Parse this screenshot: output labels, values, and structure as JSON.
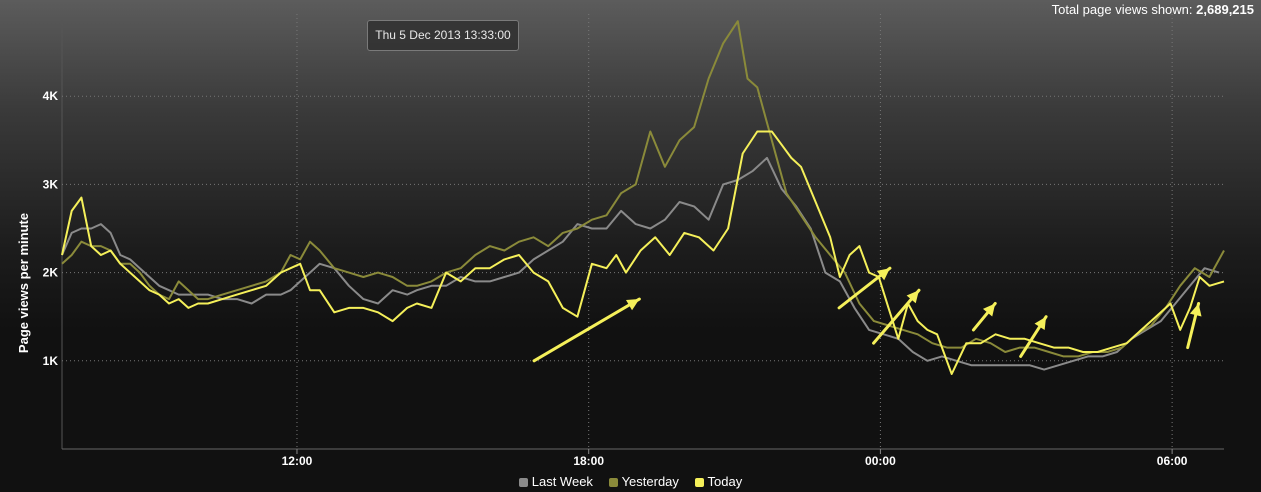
{
  "header": {
    "total_label": "Total page views shown:",
    "total_value": "2,689,215"
  },
  "tooltip": {
    "text": "Thu 5 Dec 2013 13:33:00"
  },
  "chart_data": {
    "type": "line",
    "ylabel": "Page views per minute",
    "ylim": [
      0,
      5000
    ],
    "yticks": [
      1000,
      2000,
      3000,
      4000
    ],
    "ytick_labels": [
      "1K",
      "2K",
      "3K",
      "4K"
    ],
    "x_unit": "hours from chart start (07:10)",
    "xlim": [
      0,
      23.9
    ],
    "xticks": [
      4.833,
      10.833,
      16.833,
      22.833
    ],
    "xtick_labels": [
      "12:00",
      "18:00",
      "00:00",
      "06:00"
    ],
    "grid": true,
    "legend_position": "bottom-center",
    "series": [
      {
        "name": "Last Week",
        "color": "#8a8a8a",
        "x": [
          0,
          0.2,
          0.4,
          0.6,
          0.8,
          1.0,
          1.2,
          1.4,
          1.6,
          1.8,
          2.0,
          2.2,
          2.4,
          2.6,
          2.8,
          3.0,
          3.3,
          3.6,
          3.9,
          4.2,
          4.5,
          4.7,
          4.9,
          5.1,
          5.3,
          5.6,
          5.9,
          6.2,
          6.5,
          6.8,
          7.1,
          7.3,
          7.6,
          7.9,
          8.2,
          8.5,
          8.8,
          9.1,
          9.4,
          9.7,
          10.0,
          10.3,
          10.6,
          10.9,
          11.2,
          11.5,
          11.8,
          12.1,
          12.4,
          12.7,
          13.0,
          13.3,
          13.6,
          13.9,
          14.2,
          14.5,
          14.8,
          15.1,
          15.4,
          15.7,
          16.0,
          16.3,
          16.6,
          16.9,
          17.2,
          17.5,
          17.8,
          18.1,
          18.4,
          18.7,
          19.0,
          19.3,
          19.6,
          19.9,
          20.2,
          20.5,
          20.8,
          21.1,
          21.4,
          21.7,
          22.0,
          22.3,
          22.6,
          22.9,
          23.2,
          23.5,
          23.8
        ],
        "values": [
          2200,
          2450,
          2500,
          2500,
          2550,
          2450,
          2200,
          2150,
          2050,
          1950,
          1850,
          1800,
          1750,
          1750,
          1750,
          1750,
          1700,
          1700,
          1650,
          1750,
          1750,
          1800,
          1900,
          2000,
          2100,
          2050,
          1850,
          1700,
          1650,
          1800,
          1750,
          1800,
          1850,
          1850,
          1950,
          1900,
          1900,
          1950,
          2000,
          2150,
          2250,
          2350,
          2550,
          2500,
          2500,
          2700,
          2550,
          2500,
          2600,
          2800,
          2750,
          2600,
          3000,
          3050,
          3150,
          3300,
          2950,
          2750,
          2500,
          2000,
          1900,
          1600,
          1350,
          1300,
          1250,
          1100,
          1000,
          1050,
          1000,
          950,
          950,
          950,
          950,
          950,
          900,
          950,
          1000,
          1050,
          1050,
          1100,
          1250,
          1350,
          1450,
          1650,
          1850,
          2050,
          2000
        ]
      },
      {
        "name": "Yesterday",
        "color": "#8a8a3a",
        "x": [
          0,
          0.2,
          0.4,
          0.6,
          0.8,
          1.0,
          1.2,
          1.4,
          1.6,
          1.8,
          2.0,
          2.2,
          2.4,
          2.6,
          2.8,
          3.0,
          3.3,
          3.6,
          3.9,
          4.2,
          4.5,
          4.7,
          4.9,
          5.1,
          5.3,
          5.6,
          5.9,
          6.2,
          6.5,
          6.8,
          7.1,
          7.3,
          7.6,
          7.9,
          8.2,
          8.5,
          8.8,
          9.1,
          9.4,
          9.7,
          10.0,
          10.3,
          10.6,
          10.9,
          11.2,
          11.5,
          11.8,
          12.1,
          12.4,
          12.7,
          13.0,
          13.3,
          13.6,
          13.9,
          14.1,
          14.3,
          14.6,
          14.9,
          15.2,
          15.5,
          15.8,
          16.1,
          16.4,
          16.7,
          17.0,
          17.3,
          17.6,
          17.9,
          18.2,
          18.5,
          18.8,
          19.1,
          19.4,
          19.7,
          20.0,
          20.3,
          20.6,
          20.9,
          21.2,
          21.5,
          21.8,
          22.1,
          22.4,
          22.7,
          23.0,
          23.3,
          23.6,
          23.9
        ],
        "values": [
          2100,
          2200,
          2350,
          2300,
          2300,
          2250,
          2100,
          2100,
          2000,
          1850,
          1750,
          1700,
          1900,
          1800,
          1700,
          1700,
          1750,
          1800,
          1850,
          1900,
          2000,
          2200,
          2150,
          2350,
          2250,
          2050,
          2000,
          1950,
          2000,
          1950,
          1850,
          1850,
          1900,
          2000,
          2050,
          2200,
          2300,
          2250,
          2350,
          2400,
          2300,
          2450,
          2500,
          2600,
          2650,
          2900,
          3000,
          3600,
          3200,
          3500,
          3650,
          4200,
          4600,
          4850,
          4200,
          4100,
          3500,
          2900,
          2650,
          2400,
          2200,
          2000,
          1650,
          1450,
          1400,
          1350,
          1300,
          1200,
          1150,
          1150,
          1250,
          1200,
          1100,
          1150,
          1150,
          1100,
          1050,
          1050,
          1100,
          1100,
          1150,
          1300,
          1400,
          1600,
          1850,
          2050,
          1950,
          2250
        ]
      },
      {
        "name": "Today",
        "color": "#f5f05a",
        "x": [
          0,
          0.2,
          0.4,
          0.6,
          0.8,
          1.0,
          1.2,
          1.4,
          1.6,
          1.8,
          2.0,
          2.2,
          2.4,
          2.6,
          2.8,
          3.0,
          3.3,
          3.6,
          3.9,
          4.2,
          4.5,
          4.7,
          4.9,
          5.1,
          5.3,
          5.6,
          5.9,
          6.2,
          6.5,
          6.8,
          7.1,
          7.3,
          7.6,
          7.9,
          8.2,
          8.5,
          8.8,
          9.1,
          9.4,
          9.7,
          10.0,
          10.3,
          10.6,
          10.9,
          11.2,
          11.4,
          11.6,
          11.9,
          12.2,
          12.5,
          12.8,
          13.1,
          13.4,
          13.7,
          14.0,
          14.3,
          14.6,
          14.8,
          15.0,
          15.2,
          15.5,
          15.8,
          16.0,
          16.2,
          16.4,
          16.6,
          16.8,
          17.0,
          17.2,
          17.4,
          17.6,
          17.8,
          18.0,
          18.3,
          18.6,
          18.9,
          19.2,
          19.5,
          19.8,
          20.1,
          20.4,
          20.7,
          21.0,
          21.3,
          21.6,
          21.9,
          22.2,
          22.5,
          22.8,
          23.0,
          23.2,
          23.4,
          23.6,
          23.9
        ],
        "values": [
          2200,
          2700,
          2850,
          2300,
          2200,
          2250,
          2100,
          2000,
          1900,
          1800,
          1750,
          1650,
          1700,
          1600,
          1650,
          1650,
          1700,
          1750,
          1800,
          1850,
          2000,
          2050,
          2100,
          1800,
          1800,
          1550,
          1600,
          1600,
          1550,
          1450,
          1600,
          1650,
          1600,
          2000,
          1900,
          2050,
          2050,
          2150,
          2200,
          2000,
          1900,
          1600,
          1500,
          2100,
          2050,
          2200,
          2000,
          2250,
          2400,
          2200,
          2450,
          2400,
          2250,
          2500,
          3350,
          3600,
          3600,
          3450,
          3300,
          3200,
          2800,
          2400,
          1950,
          2200,
          2300,
          2000,
          1950,
          1600,
          1250,
          1650,
          1450,
          1350,
          1300,
          850,
          1200,
          1200,
          1300,
          1250,
          1250,
          1200,
          1150,
          1150,
          1100,
          1100,
          1150,
          1200,
          1350,
          1500,
          1650,
          1350,
          1600,
          1950,
          1850,
          1900
        ]
      }
    ]
  },
  "legend": {
    "items": [
      {
        "label": "Last Week",
        "color": "#8a8a8a"
      },
      {
        "label": "Yesterday",
        "color": "#8a8a3a"
      },
      {
        "label": "Today",
        "color": "#f5f05a"
      }
    ]
  },
  "annotations": {
    "arrow_color": "#f5f05a",
    "arrows": [
      {
        "tail": [
          13.0,
          1000
        ],
        "head": [
          15.9,
          1700
        ]
      },
      {
        "tail": [
          21.4,
          1600
        ],
        "head": [
          22.8,
          2050
        ]
      },
      {
        "tail": [
          22.35,
          1200
        ],
        "head": [
          23.6,
          1800
        ]
      },
      {
        "tail": [
          25.1,
          1350
        ],
        "head": [
          25.7,
          1650
        ]
      },
      {
        "tail": [
          26.4,
          1050
        ],
        "head": [
          27.1,
          1500
        ]
      },
      {
        "tail": [
          31.0,
          1150
        ],
        "head": [
          31.3,
          1650
        ]
      }
    ]
  }
}
